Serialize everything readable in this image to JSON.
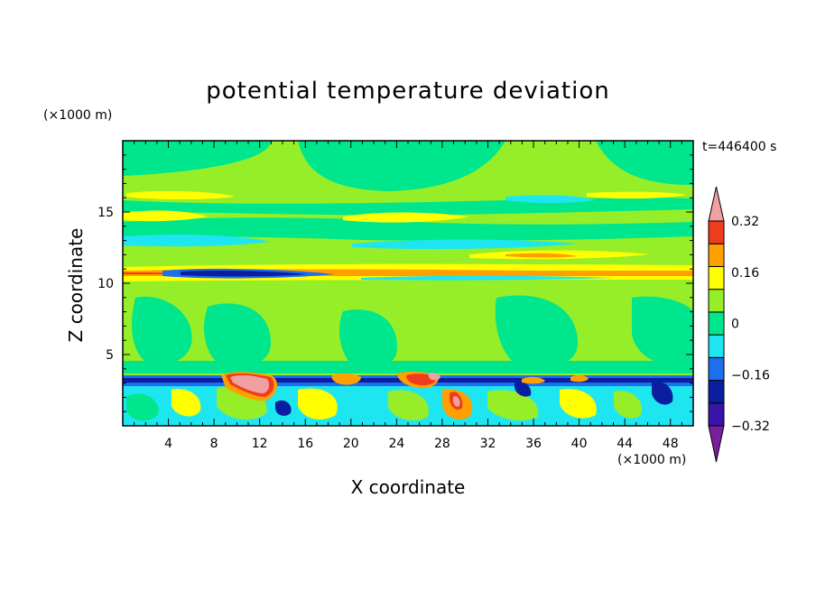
{
  "chart_data": {
    "type": "heatmap",
    "title": "potential temperature deviation",
    "xlabel": "X coordinate",
    "ylabel": "Z coordinate",
    "x_unit": "(×1000 m)",
    "z_unit": "(×1000 m)",
    "time_label": "t=446400 s",
    "xlim": [
      0,
      50
    ],
    "ylim": [
      0,
      20
    ],
    "x_ticks": [
      4,
      8,
      12,
      16,
      20,
      24,
      28,
      32,
      36,
      40,
      44,
      48
    ],
    "y_ticks": [
      5,
      10,
      15
    ],
    "colorbar": {
      "levels": [
        -0.4,
        -0.32,
        -0.24,
        -0.16,
        -0.08,
        0,
        0.08,
        0.16,
        0.24,
        0.32,
        0.4
      ],
      "labels": [
        "0.32",
        "0.16",
        "0",
        "−0.16",
        "−0.32"
      ],
      "label_values": [
        0.32,
        0.16,
        0,
        -0.16,
        -0.32
      ],
      "colors_low_to_high": [
        "#7a1fa0",
        "#3a14a8",
        "#0a1ea0",
        "#1e6ef0",
        "#1ee6f0",
        "#00e68c",
        "#96ee28",
        "#ffff00",
        "#ffa000",
        "#f03c1e",
        "#f0a0a0"
      ]
    },
    "bands": [
      {
        "z_range": [
          0,
          3.3
        ],
        "dominant": "mixed -0.24 to 0.32 (boundary layer turbulence)"
      },
      {
        "z_range": [
          3.3,
          3.7
        ],
        "dominant": -0.32,
        "note": "cold inversion layer with warm patches near x=10-14, 18-21, 25-28"
      },
      {
        "z_range": [
          3.7,
          10.2
        ],
        "dominant": 0.04
      },
      {
        "z_range": [
          10.2,
          11.0
        ],
        "dominant": 0.24,
        "note": "warm layer with cold core near x=8-18"
      },
      {
        "z_range": [
          11.0,
          17
        ],
        "dominant": 0.0,
        "note": "alternating warm/cool layers"
      },
      {
        "z_range": [
          17,
          20
        ],
        "dominant": -0.02
      }
    ]
  }
}
